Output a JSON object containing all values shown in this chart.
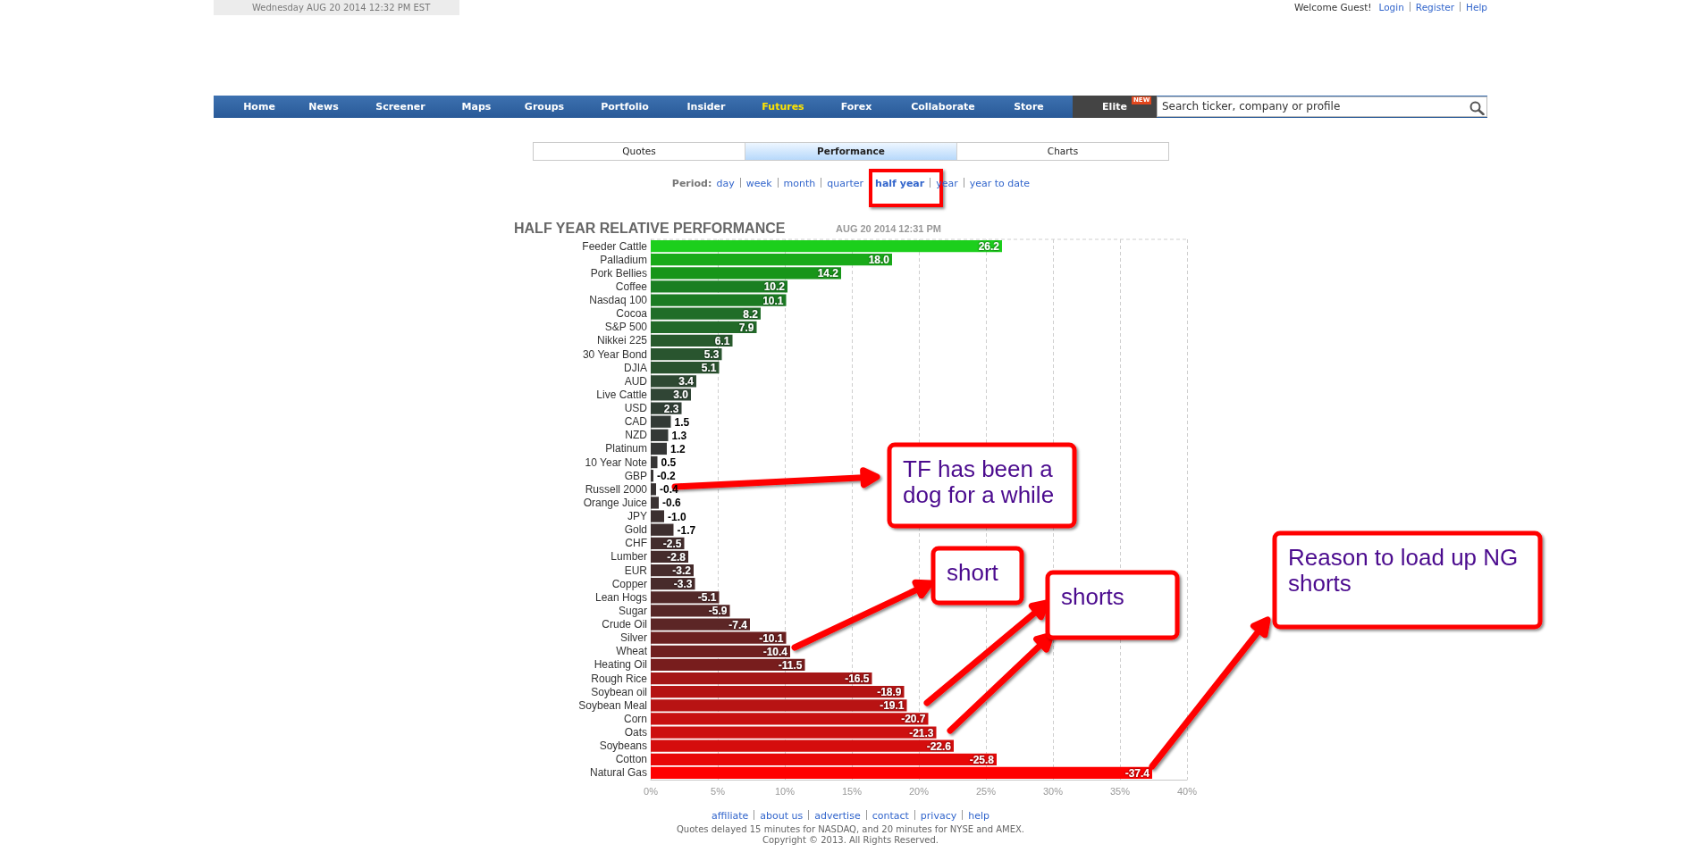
{
  "chart_data": {
    "type": "bar",
    "orientation": "horizontal",
    "title": "HALF YEAR RELATIVE PERFORMANCE",
    "subtitle": "AUG 20 2014 12:31 PM",
    "categories": [
      "Feeder Cattle",
      "Palladium",
      "Pork Bellies",
      "Coffee",
      "Nasdaq 100",
      "Cocoa",
      "S&P 500",
      "Nikkei 225",
      "30 Year Bond",
      "DJIA",
      "AUD",
      "Live Cattle",
      "USD",
      "CAD",
      "NZD",
      "Platinum",
      "10 Year Note",
      "GBP",
      "Russell 2000",
      "Orange Juice",
      "JPY",
      "Gold",
      "CHF",
      "Lumber",
      "EUR",
      "Copper",
      "Lean Hogs",
      "Sugar",
      "Crude Oil",
      "Silver",
      "Wheat",
      "Heating Oil",
      "Rough Rice",
      "Soybean oil",
      "Soybean Meal",
      "Corn",
      "Oats",
      "Soybeans",
      "Cotton",
      "Natural Gas"
    ],
    "values": [
      26.2,
      18.0,
      14.2,
      10.2,
      10.1,
      8.2,
      7.9,
      6.1,
      5.3,
      5.1,
      3.4,
      3.0,
      2.3,
      1.5,
      1.3,
      1.2,
      0.5,
      -0.2,
      -0.4,
      -0.6,
      -1.0,
      -1.7,
      -2.5,
      -2.8,
      -3.2,
      -3.3,
      -5.1,
      -5.9,
      -7.4,
      -10.1,
      -10.4,
      -11.5,
      -16.5,
      -18.9,
      -19.1,
      -20.7,
      -21.3,
      -22.6,
      -25.8,
      -37.4
    ],
    "base": [
      0,
      0,
      0,
      0,
      0,
      0,
      0,
      0,
      0,
      0,
      0,
      0,
      0,
      0,
      0,
      0,
      0,
      0.2,
      0.4,
      0.6,
      1.0,
      1.7,
      2.5,
      2.8,
      3.2,
      3.3,
      5.1,
      5.9,
      7.4,
      10.1,
      10.4,
      11.5,
      16.5,
      18.9,
      19.1,
      20.7,
      21.3,
      22.6,
      25.8,
      37.4
    ],
    "value_labels": [
      "26.2",
      "18.0",
      "14.2",
      "10.2",
      "10.1",
      "8.2",
      "7.9",
      "6.1",
      "5.3",
      "5.1",
      "3.4",
      "3.0",
      "2.3",
      "1.5",
      "1.3",
      "1.2",
      "0.5",
      "-0.2",
      "-0.4",
      "-0.6",
      "-1.0",
      "-1.7",
      "-2.5",
      "-2.8",
      "-3.2",
      "-3.3",
      "-5.1",
      "-5.9",
      "-7.4",
      "-10.1",
      "-10.4",
      "-11.5",
      "-16.5",
      "-18.9",
      "-19.1",
      "-20.7",
      "-21.3",
      "-22.6",
      "-25.8",
      "-37.4"
    ],
    "colors": [
      "#1ccf1c",
      "#19aa19",
      "#179519",
      "#1a7f22",
      "#1b7b23",
      "#206d28",
      "#226a29",
      "#285a2d",
      "#29552f",
      "#2a532f",
      "#2e4933",
      "#304535",
      "#313f35",
      "#333a36",
      "#343836",
      "#353636",
      "#363535",
      "#373434",
      "#383333",
      "#3a3232",
      "#3c3030",
      "#3e2f2f",
      "#432d2d",
      "#452c2c",
      "#472c2c",
      "#482b2b",
      "#522828",
      "#562727",
      "#5c2626",
      "#6c2020",
      "#6f2020",
      "#781d1d",
      "#a51616",
      "#b51313",
      "#b81313",
      "#c81010",
      "#cd0f0f",
      "#d50d0d",
      "#e80808",
      "#ff0000"
    ],
    "xlim": [
      0,
      40
    ],
    "xticks": [
      {
        "value": 0,
        "label": "0%"
      },
      {
        "value": 5,
        "label": "5%"
      },
      {
        "value": 10,
        "label": "10%"
      },
      {
        "value": 15,
        "label": "15%"
      },
      {
        "value": 20,
        "label": "20%"
      },
      {
        "value": 25,
        "label": "25%"
      },
      {
        "value": 30,
        "label": "30%"
      },
      {
        "value": 35,
        "label": "35%"
      },
      {
        "value": 40,
        "label": "40%"
      }
    ],
    "grid": "x",
    "annotations": [
      "Wednesday AUG 20 2014 12:32 PM EST",
      "Welcome Guest!",
      "Login",
      "Register",
      "Help",
      "Home",
      "News",
      "Screener",
      "Maps",
      "Groups",
      "Portfolio",
      "Insider",
      "Futures",
      "Forex",
      "Collaborate",
      "Store",
      "Elite",
      "NEW",
      "Search ticker, company or profile",
      "Quotes",
      "Performance",
      "Charts",
      "Period:",
      "day",
      "week",
      "month",
      "quarter",
      "half year",
      "year",
      "year to date",
      "affiliate",
      "about us",
      "advertise",
      "contact",
      "privacy",
      "help",
      "Quotes delayed 15 minutes for NASDAQ, and 20 minutes for NYSE and AMEX.",
      "Copyright © 2013. All Rights Reserved.",
      "TF has been a dog for a while",
      "short",
      "shorts",
      "Reason to load up NG shorts"
    ]
  }
}
